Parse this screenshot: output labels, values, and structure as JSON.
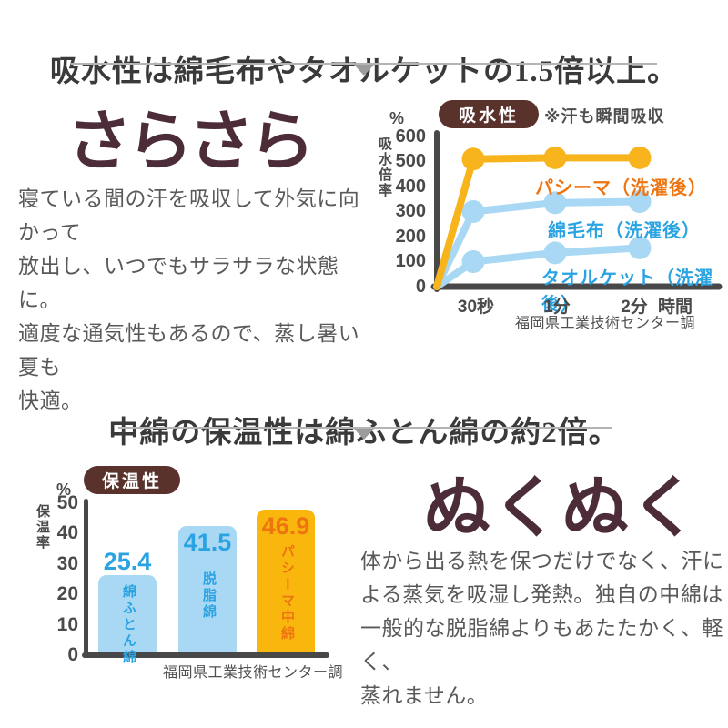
{
  "page": {
    "bg": "#ffffff"
  },
  "colors": {
    "headline": "#4d2c3a",
    "badge_bg": "#5a322c",
    "body_text": "#595959",
    "axis": "#484848",
    "orange_line": "#f8b41c",
    "light_blue": "#a8d8f3",
    "blue_text": "#2aa3e3",
    "orange_text": "#ee7410",
    "divider": "#b4b4b4"
  },
  "sections": {
    "absorb": {
      "title": "吸水性は綿毛布やタオルケットの1.5倍以上。",
      "headline": "さらさら",
      "body": "寝ている間の汗を吸収して外気に向かって\n放出し、いつでもサラサラな状態に。\n適度な通気性もあるので、蒸し暑い夏も\n快適。",
      "badge": "吸水性",
      "note": "※汗も瞬間吸収",
      "unit": "%"
    },
    "warm": {
      "title": "中綿の保温性は綿ふとん綿の約2倍。",
      "headline": "ぬくぬく",
      "body": "体から出る熱を保つだけでなく、汗に\nよる蒸気を吸湿し発熱。独自の中綿は\n一般的な脱脂綿よりもあたたかく、軽く、\n蒸れません。",
      "badge": "保温性",
      "unit": "%"
    }
  },
  "chart_data": [
    {
      "type": "line",
      "title": "吸水性",
      "x": [
        "30秒",
        "1分",
        "2分"
      ],
      "xlabel": "時間",
      "ylabel": "吸水倍率",
      "y_unit": "%",
      "ylim": [
        0,
        600
      ],
      "yticks": [
        0,
        100,
        200,
        300,
        400,
        500,
        600
      ],
      "series": [
        {
          "name": "パシーマ（洗濯後）",
          "values": [
            510,
            515,
            515
          ],
          "color": "#f8b41c",
          "label_color": "#ee7410"
        },
        {
          "name": "綿毛布（洗濯後）",
          "values": [
            300,
            335,
            340
          ],
          "color": "#a8d8f3",
          "label_color": "#2aa3e3"
        },
        {
          "name": "タオルケット（洗濯後）",
          "values": [
            100,
            135,
            155
          ],
          "color": "#a8d8f3",
          "label_color": "#2aa3e3"
        }
      ],
      "origin_included": true,
      "note": "※汗も瞬間吸収",
      "source": "福岡県工業技術センター調",
      "legend_position": "inline-right"
    },
    {
      "type": "bar",
      "title": "保温性",
      "categories": [
        "綿ふとん綿",
        "脱脂綿",
        "パシーマ中綿"
      ],
      "values": [
        25.4,
        41.5,
        46.9
      ],
      "ylabel": "保温率",
      "y_unit": "%",
      "ylim": [
        0,
        50
      ],
      "yticks": [
        0,
        10,
        20,
        30,
        40,
        50
      ],
      "bar_colors": [
        "#a8d8f3",
        "#a8d8f3",
        "#f9b70e"
      ],
      "label_colors": [
        "#2aa3e3",
        "#2aa3e3",
        "#ee7410"
      ],
      "grid": false,
      "source": "福岡県工業技術センター調"
    }
  ]
}
